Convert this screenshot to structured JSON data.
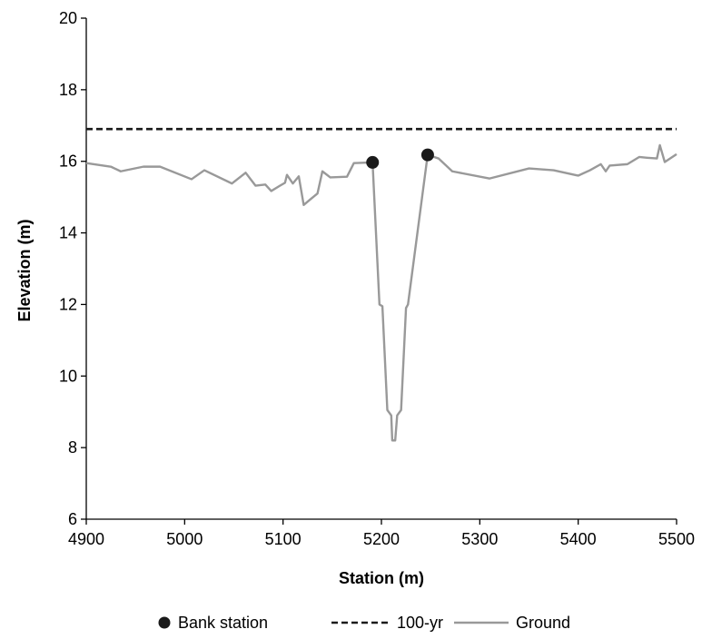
{
  "chart_data": {
    "type": "line",
    "xlabel": "Station (m)",
    "ylabel": "Elevation (m)",
    "xlim": [
      4900,
      5500
    ],
    "ylim": [
      6,
      20
    ],
    "xticks": [
      4900,
      5000,
      5100,
      5200,
      5300,
      5400,
      5500
    ],
    "yticks": [
      6,
      8,
      10,
      12,
      14,
      16,
      18,
      20
    ],
    "grid": false,
    "legend_position": "bottom",
    "series": [
      {
        "name": "Bank station",
        "style": "markers",
        "color": "#1a1a1a",
        "points": [
          [
            5191,
            15.97
          ],
          [
            5247,
            16.18
          ]
        ]
      },
      {
        "name": "100-yr",
        "style": "dashed",
        "color": "#1a1a1a",
        "points": [
          [
            4900,
            16.9
          ],
          [
            5500,
            16.9
          ]
        ]
      },
      {
        "name": "Ground",
        "style": "solid",
        "color": "#999999",
        "points": [
          [
            4900,
            15.95
          ],
          [
            4925,
            15.85
          ],
          [
            4935,
            15.72
          ],
          [
            4958,
            15.85
          ],
          [
            4975,
            15.85
          ],
          [
            5007,
            15.5
          ],
          [
            5020,
            15.75
          ],
          [
            5048,
            15.38
          ],
          [
            5062,
            15.68
          ],
          [
            5072,
            15.32
          ],
          [
            5082,
            15.35
          ],
          [
            5088,
            15.17
          ],
          [
            5097,
            15.32
          ],
          [
            5102,
            15.4
          ],
          [
            5104,
            15.62
          ],
          [
            5110,
            15.38
          ],
          [
            5116,
            15.58
          ],
          [
            5121,
            14.78
          ],
          [
            5127,
            14.92
          ],
          [
            5135,
            15.1
          ],
          [
            5140,
            15.72
          ],
          [
            5148,
            15.55
          ],
          [
            5165,
            15.57
          ],
          [
            5172,
            15.95
          ],
          [
            5191,
            15.97
          ],
          [
            5198,
            12.0
          ],
          [
            5201,
            11.95
          ],
          [
            5206,
            9.05
          ],
          [
            5210,
            8.9
          ],
          [
            5211,
            8.2
          ],
          [
            5214,
            8.2
          ],
          [
            5216,
            8.9
          ],
          [
            5220,
            9.05
          ],
          [
            5225,
            11.9
          ],
          [
            5227,
            12.0
          ],
          [
            5247,
            16.18
          ],
          [
            5258,
            16.08
          ],
          [
            5265,
            15.9
          ],
          [
            5272,
            15.72
          ],
          [
            5310,
            15.52
          ],
          [
            5350,
            15.8
          ],
          [
            5375,
            15.75
          ],
          [
            5400,
            15.6
          ],
          [
            5412,
            15.75
          ],
          [
            5423,
            15.92
          ],
          [
            5428,
            15.72
          ],
          [
            5432,
            15.88
          ],
          [
            5450,
            15.92
          ],
          [
            5462,
            16.12
          ],
          [
            5470,
            16.1
          ],
          [
            5480,
            16.08
          ],
          [
            5483,
            16.45
          ],
          [
            5488,
            15.98
          ],
          [
            5500,
            16.2
          ]
        ]
      }
    ]
  }
}
